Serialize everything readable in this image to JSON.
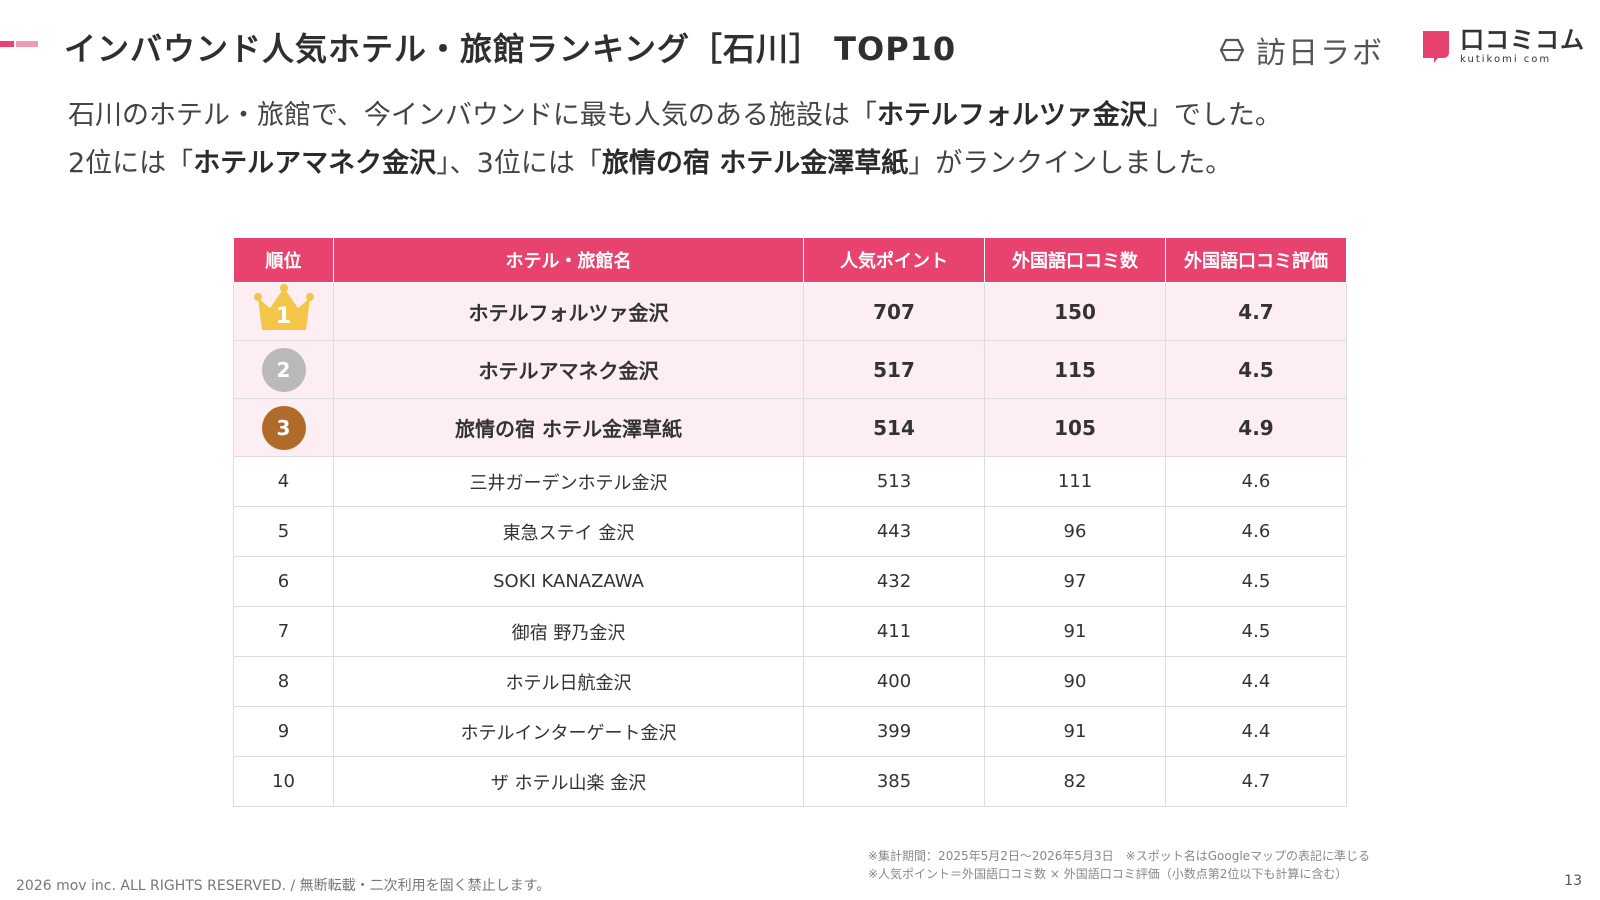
{
  "header": {
    "title": "インバウンド人気ホテル・旅館ランキング［石川］ TOP10",
    "logos": {
      "houjin_lab": "訪日ラボ",
      "kuchikomi_jp": "口コミコム",
      "kuchikomi_en": "kutikomi com"
    }
  },
  "summary": {
    "line1_pre": "石川のホテル・旅館で、今インバウンドに最も人気のある施設は「",
    "line1_bold": "ホテルフォルツァ金沢",
    "line1_post": "」でした。",
    "line2_a": "2位には「",
    "line2_b": "ホテルアマネク金沢",
    "line2_c": "」、3位には「",
    "line2_d": "旅情の宿 ホテル金澤草紙",
    "line2_e": "」がランクインしました。"
  },
  "table": {
    "headers": [
      "順位",
      "ホテル・旅館名",
      "人気ポイント",
      "外国語口コミ数",
      "外国語口コミ評価"
    ],
    "rows": [
      {
        "rank": "1",
        "name": "ホテルフォルツァ金沢",
        "points": "707",
        "reviews": "150",
        "rating": "4.7"
      },
      {
        "rank": "2",
        "name": "ホテルアマネク金沢",
        "points": "517",
        "reviews": "115",
        "rating": "4.5"
      },
      {
        "rank": "3",
        "name": "旅情の宿 ホテル金澤草紙",
        "points": "514",
        "reviews": "105",
        "rating": "4.9"
      },
      {
        "rank": "4",
        "name": "三井ガーデンホテル金沢",
        "points": "513",
        "reviews": "111",
        "rating": "4.6"
      },
      {
        "rank": "5",
        "name": "東急ステイ 金沢",
        "points": "443",
        "reviews": "96",
        "rating": "4.6"
      },
      {
        "rank": "6",
        "name": "SOKI KANAZAWA",
        "points": "432",
        "reviews": "97",
        "rating": "4.5"
      },
      {
        "rank": "7",
        "name": "御宿 野乃金沢",
        "points": "411",
        "reviews": "91",
        "rating": "4.5"
      },
      {
        "rank": "8",
        "name": "ホテル日航金沢",
        "points": "400",
        "reviews": "90",
        "rating": "4.4"
      },
      {
        "rank": "9",
        "name": "ホテルインターゲート金沢",
        "points": "399",
        "reviews": "91",
        "rating": "4.4"
      },
      {
        "rank": "10",
        "name": "ザ ホテル山楽 金沢",
        "points": "385",
        "reviews": "82",
        "rating": "4.7"
      }
    ]
  },
  "footnotes": {
    "note1": "※集計期間：2025年5月2日〜2026年5月3日　※スポット名はGoogleマップの表記に準じる",
    "note2": "※人気ポイント＝外国語口コミ数 × 外国語口コミ評価（小数点第2位以下も計算に含む）"
  },
  "footer": {
    "copyright": "2026 mov inc. ALL RIGHTS RESERVED. / 無断転載・二次利用を固く禁止します。",
    "page_number": "13"
  },
  "colors": {
    "accent": "#e8436e",
    "highlight_row": "#fdeef3",
    "gold": "#f3c64a",
    "silver": "#b9b9b9",
    "bronze": "#b06a2a"
  },
  "icons": {
    "rank1": "gold-crown-icon",
    "rank2": "silver-medal-icon",
    "rank3": "bronze-medal-icon"
  }
}
